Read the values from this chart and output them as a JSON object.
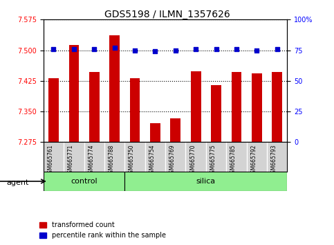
{
  "title": "GDS5198 / ILMN_1357626",
  "samples": [
    "GSM665761",
    "GSM665771",
    "GSM665774",
    "GSM665788",
    "GSM665750",
    "GSM665754",
    "GSM665769",
    "GSM665770",
    "GSM665775",
    "GSM665785",
    "GSM665792",
    "GSM665793"
  ],
  "groups": [
    "control",
    "control",
    "control",
    "control",
    "silica",
    "silica",
    "silica",
    "silica",
    "silica",
    "silica",
    "silica",
    "silica"
  ],
  "red_values": [
    7.432,
    7.513,
    7.447,
    7.537,
    7.432,
    7.322,
    7.333,
    7.448,
    7.415,
    7.447,
    7.443,
    7.447
  ],
  "blue_values": [
    76,
    76,
    76,
    77,
    75,
    74,
    75,
    76,
    76,
    76,
    75,
    76
  ],
  "ylim_left": [
    7.275,
    7.575
  ],
  "ylim_right": [
    0,
    100
  ],
  "yticks_left": [
    7.275,
    7.35,
    7.425,
    7.5,
    7.575
  ],
  "yticks_right": [
    0,
    25,
    50,
    75,
    100
  ],
  "ytick_labels_right": [
    "0",
    "25",
    "50",
    "75",
    "100%"
  ],
  "bar_color": "#cc0000",
  "dot_color": "#0000cc",
  "legend_red": "transformed count",
  "legend_blue": "percentile rank within the sample",
  "bar_width": 0.5,
  "bg_color": "#d3d3d3",
  "green_color": "#90ee90",
  "control_count": 4,
  "n_samples": 12
}
